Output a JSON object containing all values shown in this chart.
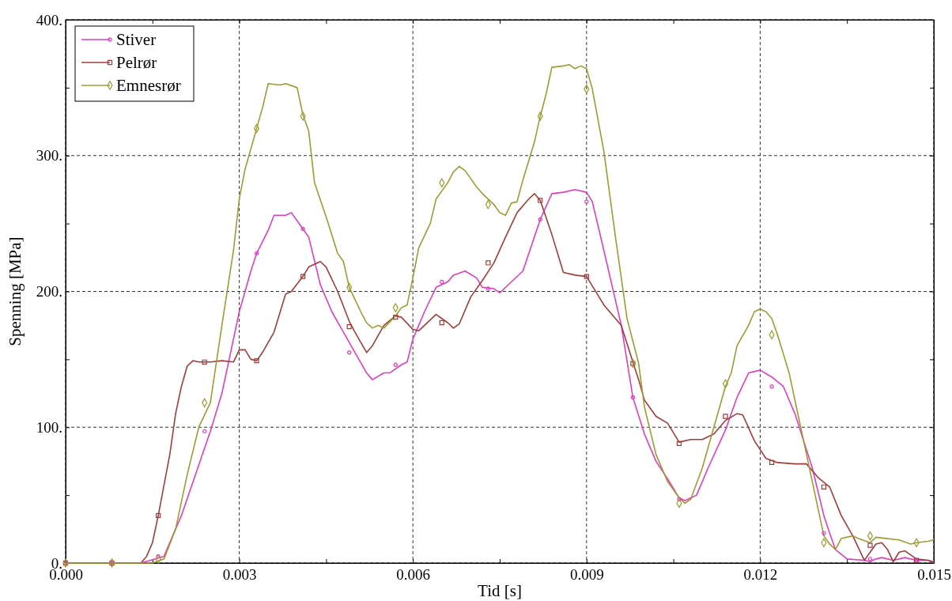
{
  "chart_data": {
    "type": "line",
    "xlabel": "Tid [s]",
    "ylabel": "Spenning [MPa]",
    "xlim": [
      0,
      0.015
    ],
    "ylim": [
      0,
      400
    ],
    "xticks": [
      {
        "value": 0,
        "label": "0.000"
      },
      {
        "value": 0.0015,
        "label": null
      },
      {
        "value": 0.003,
        "label": "0.003"
      },
      {
        "value": 0.0045,
        "label": null
      },
      {
        "value": 0.006,
        "label": "0.006"
      },
      {
        "value": 0.0075,
        "label": null
      },
      {
        "value": 0.009,
        "label": "0.009"
      },
      {
        "value": 0.0105,
        "label": null
      },
      {
        "value": 0.012,
        "label": "0.012"
      },
      {
        "value": 0.0135,
        "label": null
      },
      {
        "value": 0.015,
        "label": "0.015"
      }
    ],
    "yticks": [
      {
        "value": 0,
        "label": "0."
      },
      {
        "value": 50,
        "label": null
      },
      {
        "value": 100,
        "label": "100."
      },
      {
        "value": 150,
        "label": null
      },
      {
        "value": 200,
        "label": "200."
      },
      {
        "value": 250,
        "label": null
      },
      {
        "value": 300,
        "label": "300."
      },
      {
        "value": 350,
        "label": null
      },
      {
        "value": 400,
        "label": "400."
      }
    ],
    "grid": true,
    "legend": "top left",
    "line_style": "solid",
    "series": [
      {
        "name": "Stiver",
        "color": "#e23cc0",
        "marker": "none",
        "x": [
          0,
          0.0013,
          0.0017,
          0.002,
          0.0025,
          0.0027,
          0.003,
          0.0032,
          0.0033,
          0.0035,
          0.0036,
          0.0038,
          0.0039,
          0.0041,
          0.0042,
          0.0044,
          0.0046,
          0.0048,
          0.005,
          0.0052,
          0.0053,
          0.0055,
          0.0056,
          0.0058,
          0.0059,
          0.006,
          0.0062,
          0.0064,
          0.0066,
          0.0067,
          0.0069,
          0.0071,
          0.0072,
          0.0074,
          0.0075,
          0.0077,
          0.0079,
          0.0082,
          0.0084,
          0.0086,
          0.0088,
          0.009,
          0.0091,
          0.0093,
          0.0096,
          0.0098,
          0.01,
          0.0102,
          0.0104,
          0.0106,
          0.0107,
          0.0109,
          0.0111,
          0.0114,
          0.0116,
          0.0118,
          0.012,
          0.0122,
          0.0124,
          0.0126,
          0.0129,
          0.0131,
          0.0132,
          0.0133,
          0.0135,
          0.0138,
          0.0139,
          0.014,
          0.0141,
          0.0143,
          0.0145,
          0.0147,
          0.0149,
          0.015
        ],
        "values": [
          0,
          0,
          5,
          35,
          97,
          125,
          185,
          215,
          228,
          245,
          256,
          256,
          258,
          246,
          240,
          205,
          185,
          170,
          155,
          140,
          135,
          140,
          140,
          146,
          148,
          165,
          185,
          203,
          207,
          212,
          215,
          210,
          203,
          202,
          199,
          207,
          215,
          253,
          272,
          273,
          275,
          273,
          266,
          230,
          175,
          122,
          95,
          75,
          62,
          48,
          46,
          50,
          70,
          98,
          122,
          140,
          142,
          137,
          130,
          110,
          70,
          35,
          22,
          10,
          3,
          2,
          1,
          3,
          4,
          2,
          4,
          2,
          2,
          1
        ]
      },
      {
        "name": "Pelrør",
        "color": "#a03c3c",
        "marker": "none",
        "x": [
          0,
          0.0013,
          0.0014,
          0.0015,
          0.0016,
          0.0018,
          0.0019,
          0.002,
          0.0021,
          0.0022,
          0.0023,
          0.0025,
          0.0027,
          0.0029,
          0.003,
          0.0031,
          0.0032,
          0.0033,
          0.0034,
          0.0036,
          0.0038,
          0.0039,
          0.0041,
          0.0042,
          0.0044,
          0.0045,
          0.0047,
          0.0049,
          0.005,
          0.0052,
          0.0053,
          0.0055,
          0.0057,
          0.0058,
          0.006,
          0.0061,
          0.0062,
          0.0064,
          0.0066,
          0.0067,
          0.0068,
          0.007,
          0.0072,
          0.0074,
          0.0076,
          0.0078,
          0.008,
          0.0081,
          0.0082,
          0.0084,
          0.0086,
          0.0088,
          0.009,
          0.0093,
          0.0096,
          0.0098,
          0.0099,
          0.01,
          0.0102,
          0.0104,
          0.0106,
          0.0108,
          0.011,
          0.0112,
          0.0114,
          0.0116,
          0.0117,
          0.0119,
          0.0121,
          0.0123,
          0.0126,
          0.0128,
          0.013,
          0.0132,
          0.0134,
          0.0136,
          0.0138,
          0.014,
          0.0141,
          0.0142,
          0.0143,
          0.0144,
          0.0145,
          0.0147,
          0.0149,
          0.015
        ],
        "values": [
          0,
          0,
          5,
          15,
          35,
          80,
          110,
          130,
          145,
          149,
          148,
          148,
          149,
          148,
          157,
          157,
          150,
          149,
          155,
          170,
          198,
          200,
          211,
          218,
          222,
          218,
          200,
          178,
          170,
          155,
          160,
          175,
          182,
          181,
          172,
          171,
          175,
          183,
          177,
          173,
          176,
          196,
          208,
          221,
          240,
          258,
          268,
          272,
          267,
          242,
          214,
          212,
          211,
          190,
          175,
          148,
          135,
          120,
          108,
          103,
          89,
          91,
          91,
          95,
          105,
          110,
          109,
          90,
          77,
          74,
          73,
          73,
          63,
          56,
          35,
          20,
          2,
          14,
          15,
          10,
          1,
          8,
          9,
          3,
          2,
          0
        ]
      },
      {
        "name": "Emnesrør",
        "color": "#9c9c32",
        "marker": "none",
        "x": [
          0,
          0.0015,
          0.0017,
          0.0019,
          0.0021,
          0.0023,
          0.0025,
          0.0027,
          0.0029,
          0.003,
          0.0031,
          0.0033,
          0.0034,
          0.0035,
          0.0037,
          0.0038,
          0.004,
          0.0041,
          0.0042,
          0.0043,
          0.0045,
          0.0047,
          0.0048,
          0.0049,
          0.0051,
          0.0052,
          0.0053,
          0.0054,
          0.0055,
          0.0057,
          0.0058,
          0.0059,
          0.006,
          0.0061,
          0.0063,
          0.0064,
          0.0066,
          0.0067,
          0.0068,
          0.0069,
          0.0071,
          0.0072,
          0.0074,
          0.0075,
          0.0076,
          0.0077,
          0.0078,
          0.0079,
          0.0081,
          0.0082,
          0.0083,
          0.0084,
          0.0086,
          0.0087,
          0.0088,
          0.0089,
          0.009,
          0.0091,
          0.0093,
          0.0095,
          0.0097,
          0.0099,
          0.01,
          0.0102,
          0.0104,
          0.0106,
          0.0107,
          0.0108,
          0.011,
          0.0112,
          0.0114,
          0.0115,
          0.0116,
          0.0118,
          0.0119,
          0.012,
          0.0121,
          0.0122,
          0.0123,
          0.0125,
          0.0127,
          0.0129,
          0.0131,
          0.0132,
          0.0133,
          0.0134,
          0.0136,
          0.0137,
          0.0139,
          0.014,
          0.0142,
          0.0144,
          0.0146,
          0.0147,
          0.0149,
          0.015
        ],
        "values": [
          0,
          0,
          3,
          25,
          65,
          100,
          118,
          175,
          230,
          268,
          290,
          320,
          335,
          353,
          352,
          353,
          350,
          330,
          318,
          280,
          255,
          228,
          222,
          203,
          185,
          177,
          173,
          175,
          173,
          182,
          188,
          190,
          210,
          232,
          250,
          268,
          280,
          288,
          292,
          289,
          277,
          272,
          264,
          258,
          256,
          265,
          266,
          282,
          310,
          329,
          345,
          365,
          366,
          367,
          364,
          366,
          364,
          349,
          303,
          240,
          180,
          147,
          115,
          80,
          60,
          48,
          44,
          47,
          70,
          100,
          130,
          140,
          160,
          175,
          185,
          187,
          185,
          180,
          168,
          140,
          100,
          60,
          20,
          14,
          10,
          18,
          20,
          18,
          15,
          19,
          18,
          17,
          14,
          15,
          16,
          17
        ]
      },
      {
        "type": "scatter",
        "color": "#e23cc0",
        "marker": "circle",
        "x": [
          0,
          0.0008,
          0.0016,
          0.0024,
          0.0033,
          0.0041,
          0.0049,
          0.0057,
          0.0065,
          0.0073,
          0.0082,
          0.009,
          0.0098,
          0.0106,
          0.0122,
          0.0131,
          0.0139,
          0.0147
        ],
        "values": [
          0,
          0,
          5,
          97,
          228,
          246,
          155,
          146,
          207,
          202,
          253,
          266,
          122,
          47,
          130,
          22,
          3,
          2
        ]
      },
      {
        "type": "scatter",
        "color": "#a03c3c",
        "marker": "square",
        "x": [
          0,
          0.0008,
          0.0016,
          0.0024,
          0.0033,
          0.0041,
          0.0049,
          0.0057,
          0.0065,
          0.0073,
          0.0082,
          0.009,
          0.0098,
          0.0106,
          0.0114,
          0.0122,
          0.0131,
          0.0139,
          0.0147
        ],
        "values": [
          0,
          0,
          35,
          148,
          149,
          211,
          174,
          181,
          177,
          221,
          267,
          211,
          147,
          88,
          108,
          74,
          56,
          13,
          2
        ]
      },
      {
        "type": "scatter",
        "color": "#9c9c32",
        "marker": "diamond",
        "x": [
          0,
          0.0008,
          0.0016,
          0.0024,
          0.0033,
          0.0041,
          0.0049,
          0.0057,
          0.0065,
          0.0073,
          0.0082,
          0.009,
          0.0098,
          0.0106,
          0.0114,
          0.0122,
          0.0131,
          0.0139,
          0.0147
        ],
        "values": [
          0,
          0,
          3,
          118,
          320,
          329,
          203,
          188,
          280,
          264,
          329,
          349,
          147,
          44,
          132,
          168,
          15,
          20,
          15
        ]
      }
    ]
  }
}
